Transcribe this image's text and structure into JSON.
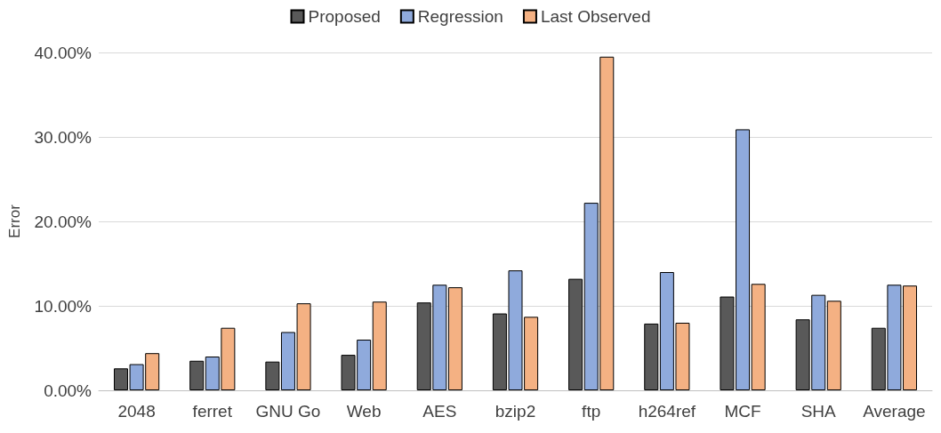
{
  "chart_data": {
    "type": "bar",
    "ylabel": "Error",
    "categories": [
      "2048",
      "ferret",
      "GNU Go",
      "Web",
      "AES",
      "bzip2",
      "ftp",
      "h264ref",
      "MCF",
      "SHA",
      "Average"
    ],
    "series": [
      {
        "name": "Proposed",
        "color": "#595959",
        "values": [
          2.6,
          3.5,
          3.4,
          4.2,
          10.4,
          9.1,
          13.2,
          7.9,
          11.1,
          8.4,
          7.4
        ]
      },
      {
        "name": "Regression",
        "color": "#8faadc",
        "values": [
          3.1,
          4.0,
          6.9,
          6.0,
          12.5,
          14.2,
          22.2,
          14.0,
          30.9,
          11.3,
          12.5
        ]
      },
      {
        "name": "Last Observed",
        "color": "#f4b183",
        "values": [
          4.4,
          7.4,
          10.3,
          10.5,
          12.2,
          8.7,
          39.5,
          8.0,
          12.6,
          10.6,
          12.4
        ]
      }
    ],
    "ylim": [
      0,
      40
    ],
    "yticks": [
      {
        "value": 0,
        "label": "0.00%"
      },
      {
        "value": 10,
        "label": "10.00%"
      },
      {
        "value": 20,
        "label": "20.00%"
      },
      {
        "value": 30,
        "label": "30.00%"
      },
      {
        "value": 40,
        "label": "40.00%"
      }
    ],
    "grid": "y",
    "legend": "top"
  }
}
